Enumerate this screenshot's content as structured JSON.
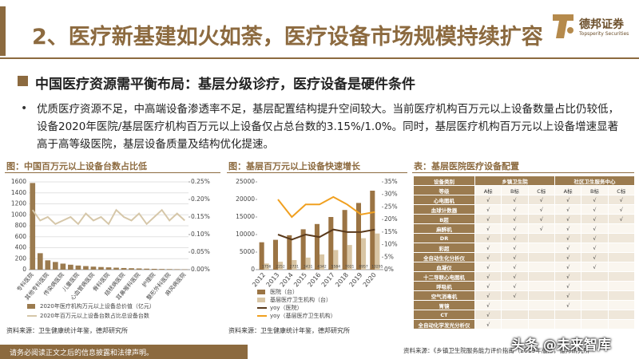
{
  "header": {
    "title": "2、医疗新基建如火如荼，医疗设备市场规模持续扩容",
    "brand": "德邦证券",
    "brand_en": "Topsperity Securities"
  },
  "section": {
    "heading": "中国医疗资源需平衡布局：基层分级诊疗，医疗设备是硬件条件"
  },
  "bullet": "优质医疗资源不足，中高端设备渗透率不足，基层配置结构提升空间较大。当前医疗机构百万元以上设备数量占比仍较低，设备2020年医院/基层医疗机构百万元以上设备仅占总台数的3.15%/1.0%。同时，基层医疗机构百万元以上设备增速显著高于高等级医院，基层设备质量及结构优化提速。",
  "chart_data": [
    {
      "type": "bar",
      "title": "图：中国百万元以上设备台数占比低",
      "categories": [
        "专科医院",
        null,
        "其他专科医院",
        null,
        "传染病医院",
        null,
        "儿童医院",
        null,
        "心血管病医院",
        null,
        "骨科医院",
        null,
        "结核病医院",
        null,
        "耳鼻喉科医院",
        null,
        "护理院",
        null,
        "整形外科医院",
        null,
        "麻风病医院"
      ],
      "series": [
        {
          "name": "2020年医疗机构万元以上设备总价值（亿元）",
          "color": "#9b7b4f",
          "type": "bar",
          "values": [
            1580,
            300,
            170,
            140,
            110,
            90,
            75,
            65,
            55,
            48,
            42,
            36,
            30,
            26,
            22,
            18,
            15,
            12,
            10,
            8,
            6
          ]
        },
        {
          "name": "2020年百万元以上设备台数占比总设备台数",
          "color": "#d6c7a9",
          "type": "line",
          "axis": "y2",
          "values": [
            0.17,
            0.14,
            0.15,
            0.13,
            0.14,
            0.15,
            0.13,
            0.16,
            0.14,
            0.15,
            0.13,
            0.17,
            0.15,
            0.14,
            0.16,
            0.13,
            0.15,
            0.17,
            0.14,
            0.16,
            0.14
          ]
        }
      ],
      "ylim": [
        0,
        1600
      ],
      "yticks": [
        0,
        200,
        400,
        600,
        800,
        1000,
        1200,
        1400,
        1600
      ],
      "y2lim": [
        0,
        0.25
      ],
      "y2ticks": [
        {
          "value": 0,
          "label": "0.00%"
        },
        {
          "value": 0.05,
          "label": "0.05%"
        },
        {
          "value": 0.1,
          "label": "0.10%"
        },
        {
          "value": 0.15,
          "label": "0.15%"
        },
        {
          "value": 0.2,
          "label": "0.20%"
        },
        {
          "value": 0.25,
          "label": "0.25%"
        }
      ],
      "grid": true,
      "source": "资料来源：卫生健康统计年鉴，德邦研究所"
    },
    {
      "type": "bar",
      "title": "图：基层百万元以上设备快速增长",
      "categories": [
        "2012",
        "2013",
        "2014",
        "2015",
        "2016",
        "2017",
        "2018",
        "2019",
        "2020"
      ],
      "series": [
        {
          "name": "医院（台）",
          "color": "#9b7444",
          "type": "bar",
          "values": [
            7800,
            8500,
            9800,
            11500,
            13000,
            15000,
            17000,
            19000,
            22500
          ]
        },
        {
          "name": "基层医疗卫生机构（台）",
          "color": "#d9c6a5",
          "type": "bar",
          "labels": true,
          "values": [
            1756,
            2252,
            2731,
            3431,
            4342,
            5584,
            7021,
            8957,
            10295
          ]
        },
        {
          "name": "yoy（医院）",
          "color": "#5a3a1c",
          "type": "line",
          "axis": "y2",
          "values": [
            null,
            14,
            12,
            14,
            13,
            16,
            15,
            15,
            16
          ]
        },
        {
          "name": "yoy（基层医疗卫生机构）",
          "color": "#f0a020",
          "type": "line",
          "axis": "y2",
          "values": [
            null,
            28,
            21,
            26,
            26,
            29,
            26,
            22,
            23
          ]
        }
      ],
      "ylim": [
        0,
        25000
      ],
      "yticks": [
        0,
        5000,
        10000,
        15000,
        20000,
        25000
      ],
      "y2lim": [
        0,
        35
      ],
      "y2ticks": [
        {
          "value": 0,
          "label": "0%"
        },
        {
          "value": 5,
          "label": "5%"
        },
        {
          "value": 10,
          "label": "10%"
        },
        {
          "value": 15,
          "label": "15%"
        },
        {
          "value": 20,
          "label": "20%"
        },
        {
          "value": 25,
          "label": "25%"
        },
        {
          "value": 30,
          "label": "30%"
        },
        {
          "value": 35,
          "label": "35%"
        }
      ],
      "grid": false,
      "source": "资料来源：卫生健康统计年鉴，德邦研究所"
    }
  ],
  "table": {
    "title": "表：基层医院医疗设备配置",
    "header": [
      "设备类别",
      "乡镇卫生院",
      "社区卫生服务中心"
    ],
    "levels": [
      "等级",
      "A标",
      "B标",
      "C标",
      "A标",
      "B标",
      "C标"
    ],
    "rows": [
      [
        "心电图机",
        "√",
        "√",
        "√",
        "√",
        "√",
        "√"
      ],
      [
        "血球计数器",
        "√",
        "√",
        "√",
        "√",
        "√",
        "√"
      ],
      [
        "B超",
        "√",
        "√",
        "√",
        "√",
        "√",
        "√"
      ],
      [
        "麻醉机",
        "√",
        "√",
        "√",
        "√",
        "√",
        null
      ],
      [
        "DR",
        "√",
        "√",
        null,
        "√",
        "√",
        null
      ],
      [
        "彩超",
        "√",
        "√",
        null,
        "√",
        "√",
        null
      ],
      [
        "全自动生化分析仪",
        "√",
        "√",
        null,
        "√",
        "√",
        null
      ],
      [
        "血凝仪",
        "√",
        "√",
        null,
        "√",
        "√",
        null
      ],
      [
        "十二导联心电图机",
        "√",
        "√",
        null,
        "√",
        null,
        null
      ],
      [
        "呼吸机",
        "√",
        "√",
        null,
        "√",
        null,
        null
      ],
      [
        "空气消毒机",
        "√",
        "√",
        null,
        "√",
        null,
        null
      ],
      [
        "胃镜",
        "√",
        null,
        null,
        "√",
        null,
        null
      ],
      [
        "CT",
        "√",
        null,
        null,
        null,
        null,
        null
      ],
      [
        "全自动化学发光分析仪",
        "√",
        null,
        null,
        null,
        null,
        null
      ]
    ],
    "source": "资料来源：《乡镇卫生院服务能力评价指南（2019年版）》，德邦研究所"
  },
  "watermark": "头条 @未来智库",
  "footer": "请务必阅读正文之后的信息披露和法律声明。"
}
